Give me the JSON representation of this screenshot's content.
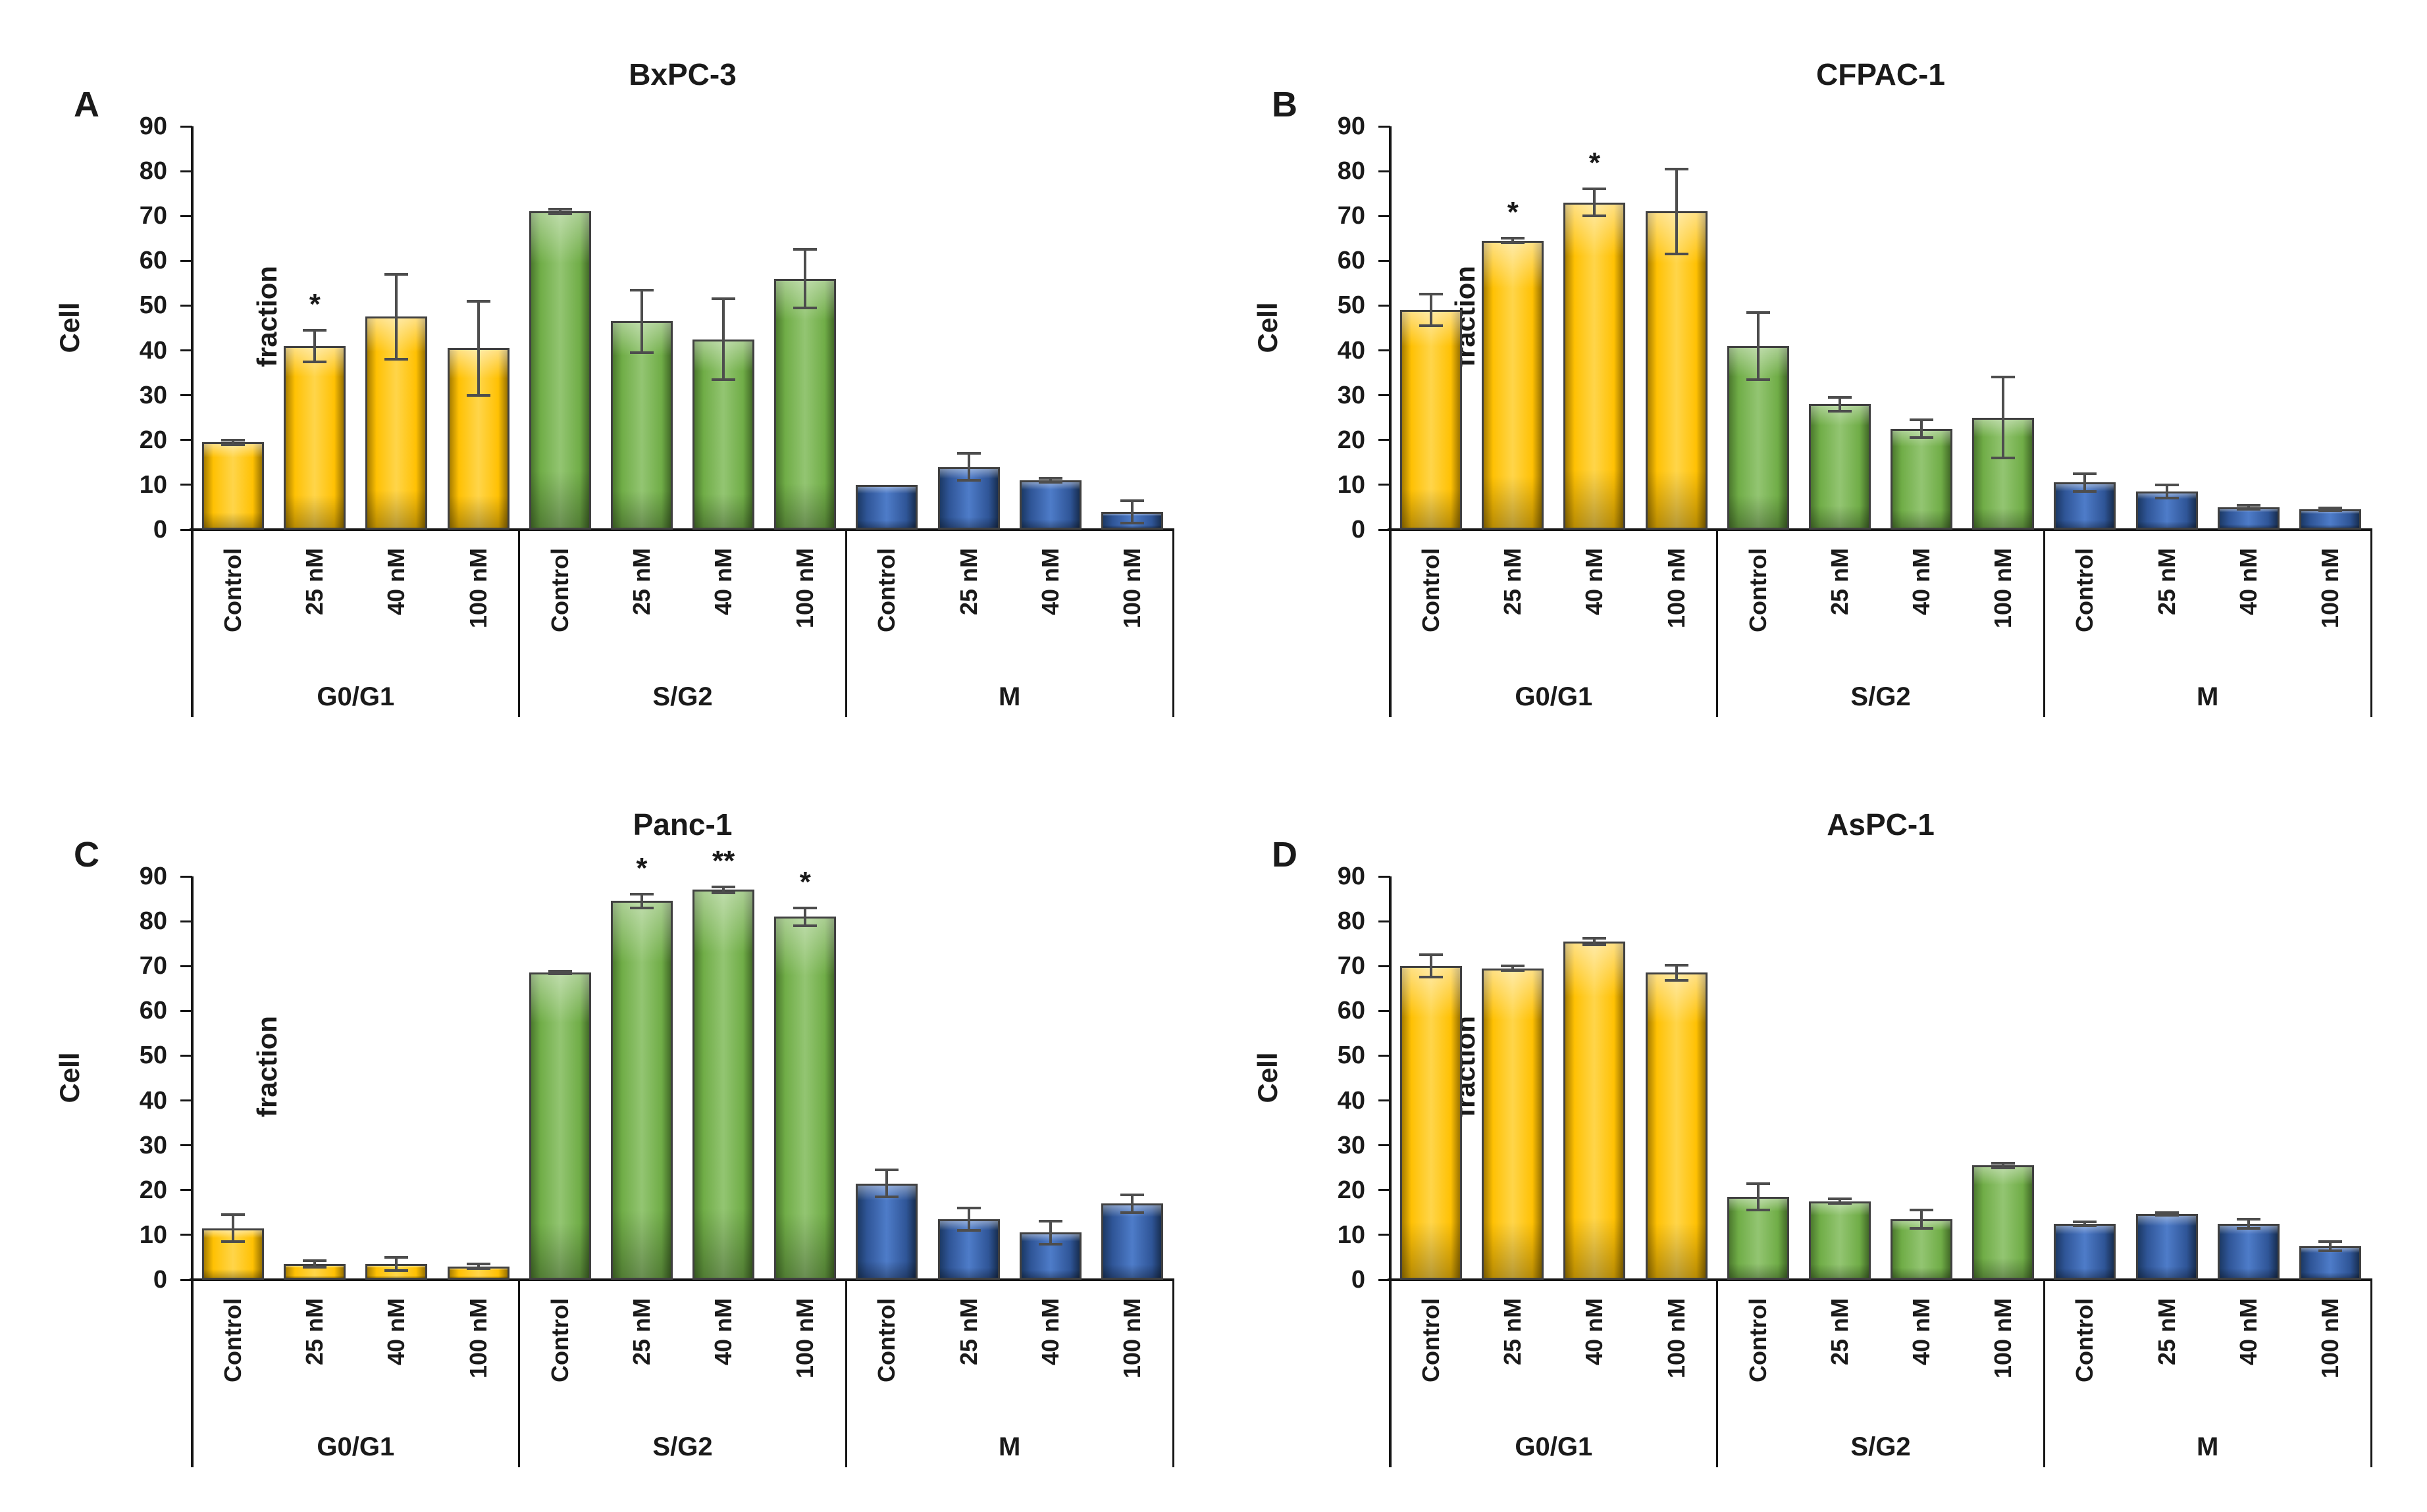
{
  "figure": {
    "background": "#ffffff",
    "colors": {
      "g0g1_fill": "#FFC000",
      "sg2_fill": "#70AD47",
      "m_fill": "#2F5597",
      "bar_border": "#404040",
      "error_bar": "#4D4D4D",
      "axis": "#161616",
      "text": "#1A1A1A"
    }
  },
  "chart_data": [
    {
      "type": "bar",
      "panel_label": "A",
      "title": "BxPC-3",
      "ylabel": "Cell fraction",
      "ylim": [
        0,
        90
      ],
      "yticks": [
        0,
        10,
        20,
        30,
        40,
        50,
        60,
        70,
        80,
        90
      ],
      "legend": "none",
      "grid": "off",
      "groups": [
        {
          "label": "G0/G1",
          "color": "#FFC000",
          "bars": [
            {
              "category": "Control",
              "value": 19.5,
              "error": 0.5,
              "sig": ""
            },
            {
              "category": "25 nM",
              "value": 41,
              "error": 3.5,
              "sig": "*"
            },
            {
              "category": "40 nM",
              "value": 47.5,
              "error": 9.5,
              "sig": ""
            },
            {
              "category": "100 nM",
              "value": 40.5,
              "error": 10.5,
              "sig": ""
            }
          ]
        },
        {
          "label": "S/G2",
          "color": "#70AD47",
          "bars": [
            {
              "category": "Control",
              "value": 71,
              "error": 0.5,
              "sig": ""
            },
            {
              "category": "25 nM",
              "value": 46.5,
              "error": 7,
              "sig": ""
            },
            {
              "category": "40 nM",
              "value": 42.5,
              "error": 9,
              "sig": ""
            },
            {
              "category": "100 nM",
              "value": 56,
              "error": 6.5,
              "sig": ""
            }
          ]
        },
        {
          "label": "M",
          "color": "#2F5597",
          "bars": [
            {
              "category": "Control",
              "value": 10,
              "error": 0,
              "sig": ""
            },
            {
              "category": "25 nM",
              "value": 14,
              "error": 3,
              "sig": ""
            },
            {
              "category": "40 nM",
              "value": 11,
              "error": 0.5,
              "sig": ""
            },
            {
              "category": "100 nM",
              "value": 4,
              "error": 2.5,
              "sig": ""
            }
          ]
        }
      ]
    },
    {
      "type": "bar",
      "panel_label": "B",
      "title": "CFPAC-1",
      "ylabel": "Cell fraction",
      "ylim": [
        0,
        90
      ],
      "yticks": [
        0,
        10,
        20,
        30,
        40,
        50,
        60,
        70,
        80,
        90
      ],
      "legend": "none",
      "grid": "off",
      "groups": [
        {
          "label": "G0/G1",
          "color": "#FFC000",
          "bars": [
            {
              "category": "Control",
              "value": 49,
              "error": 3.5,
              "sig": ""
            },
            {
              "category": "25 nM",
              "value": 64.5,
              "error": 0.5,
              "sig": "*"
            },
            {
              "category": "40 nM",
              "value": 73,
              "error": 3,
              "sig": "*"
            },
            {
              "category": "100 nM",
              "value": 71,
              "error": 9.5,
              "sig": ""
            }
          ]
        },
        {
          "label": "S/G2",
          "color": "#70AD47",
          "bars": [
            {
              "category": "Control",
              "value": 41,
              "error": 7.5,
              "sig": ""
            },
            {
              "category": "25 nM",
              "value": 28,
              "error": 1.5,
              "sig": ""
            },
            {
              "category": "40 nM",
              "value": 22.5,
              "error": 2,
              "sig": ""
            },
            {
              "category": "100 nM",
              "value": 25,
              "error": 9,
              "sig": ""
            }
          ]
        },
        {
          "label": "M",
          "color": "#2F5597",
          "bars": [
            {
              "category": "Control",
              "value": 10.5,
              "error": 2,
              "sig": ""
            },
            {
              "category": "25 nM",
              "value": 8.5,
              "error": 1.5,
              "sig": ""
            },
            {
              "category": "40 nM",
              "value": 5,
              "error": 0.5,
              "sig": ""
            },
            {
              "category": "100 nM",
              "value": 4.5,
              "error": 0.3,
              "sig": ""
            }
          ]
        }
      ]
    },
    {
      "type": "bar",
      "panel_label": "C",
      "title": "Panc-1",
      "ylabel": "Cell fraction",
      "ylim": [
        0,
        90
      ],
      "yticks": [
        0,
        10,
        20,
        30,
        40,
        50,
        60,
        70,
        80,
        90
      ],
      "legend": "none",
      "grid": "off",
      "groups": [
        {
          "label": "G0/G1",
          "color": "#FFC000",
          "bars": [
            {
              "category": "Control",
              "value": 11.5,
              "error": 3,
              "sig": ""
            },
            {
              "category": "25 nM",
              "value": 3.5,
              "error": 0.7,
              "sig": ""
            },
            {
              "category": "40 nM",
              "value": 3.5,
              "error": 1.5,
              "sig": ""
            },
            {
              "category": "100 nM",
              "value": 3,
              "error": 0.5,
              "sig": ""
            }
          ]
        },
        {
          "label": "S/G2",
          "color": "#70AD47",
          "bars": [
            {
              "category": "Control",
              "value": 68.5,
              "error": 0.3,
              "sig": ""
            },
            {
              "category": "25 nM",
              "value": 84.5,
              "error": 1.5,
              "sig": "*"
            },
            {
              "category": "40 nM",
              "value": 87,
              "error": 0.7,
              "sig": "**"
            },
            {
              "category": "100 nM",
              "value": 81,
              "error": 2,
              "sig": "*"
            }
          ]
        },
        {
          "label": "M",
          "color": "#2F5597",
          "bars": [
            {
              "category": "Control",
              "value": 21.5,
              "error": 3,
              "sig": ""
            },
            {
              "category": "25 nM",
              "value": 13.5,
              "error": 2.5,
              "sig": ""
            },
            {
              "category": "40 nM",
              "value": 10.5,
              "error": 2.5,
              "sig": ""
            },
            {
              "category": "100 nM",
              "value": 17,
              "error": 2,
              "sig": ""
            }
          ]
        }
      ]
    },
    {
      "type": "bar",
      "panel_label": "D",
      "title": "AsPC-1",
      "ylabel": "Cell fraction",
      "ylim": [
        0,
        90
      ],
      "yticks": [
        0,
        10,
        20,
        30,
        40,
        50,
        60,
        70,
        80,
        90
      ],
      "legend": "none",
      "grid": "off",
      "groups": [
        {
          "label": "G0/G1",
          "color": "#FFC000",
          "bars": [
            {
              "category": "Control",
              "value": 70,
              "error": 2.5,
              "sig": ""
            },
            {
              "category": "25 nM",
              "value": 69.5,
              "error": 0.5,
              "sig": ""
            },
            {
              "category": "40 nM",
              "value": 75.5,
              "error": 0.7,
              "sig": ""
            },
            {
              "category": "100 nM",
              "value": 68.5,
              "error": 1.7,
              "sig": ""
            }
          ]
        },
        {
          "label": "S/G2",
          "color": "#70AD47",
          "bars": [
            {
              "category": "Control",
              "value": 18.5,
              "error": 3,
              "sig": ""
            },
            {
              "category": "25 nM",
              "value": 17.5,
              "error": 0.5,
              "sig": ""
            },
            {
              "category": "40 nM",
              "value": 13.5,
              "error": 2,
              "sig": ""
            },
            {
              "category": "100 nM",
              "value": 25.5,
              "error": 0.5,
              "sig": ""
            }
          ]
        },
        {
          "label": "M",
          "color": "#2F5597",
          "bars": [
            {
              "category": "Control",
              "value": 12.5,
              "error": 0.4,
              "sig": ""
            },
            {
              "category": "25 nM",
              "value": 14.7,
              "error": 0.3,
              "sig": ""
            },
            {
              "category": "40 nM",
              "value": 12.5,
              "error": 1,
              "sig": ""
            },
            {
              "category": "100 nM",
              "value": 7.5,
              "error": 1,
              "sig": ""
            }
          ]
        }
      ]
    }
  ]
}
